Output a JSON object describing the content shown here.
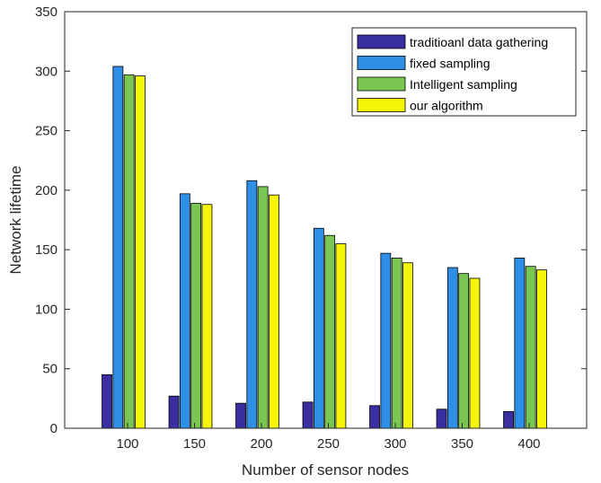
{
  "chart_data": {
    "type": "bar",
    "title": "",
    "xlabel": "Number of sensor nodes",
    "ylabel": "Network lifetime",
    "categories": [
      "100",
      "150",
      "200",
      "250",
      "300",
      "350",
      "400"
    ],
    "ylim": [
      0,
      350
    ],
    "yticks": [
      "0",
      "50",
      "100",
      "150",
      "200",
      "250",
      "300",
      "350"
    ],
    "grid": false,
    "legend_position": "top-right",
    "series": [
      {
        "name": "traditioanl data gathering",
        "color": "#3a2fa0",
        "values": [
          45,
          27,
          21,
          22,
          19,
          16,
          14
        ]
      },
      {
        "name": "fixed sampling",
        "color": "#2f8fe6",
        "values": [
          304,
          197,
          208,
          168,
          147,
          135,
          143
        ]
      },
      {
        "name": "Intelligent sampling",
        "color": "#7ac653",
        "values": [
          297,
          189,
          203,
          162,
          143,
          130,
          136
        ]
      },
      {
        "name": "our algorithm",
        "color": "#f5f50a",
        "values": [
          296,
          188,
          196,
          155,
          139,
          126,
          133
        ]
      }
    ]
  }
}
